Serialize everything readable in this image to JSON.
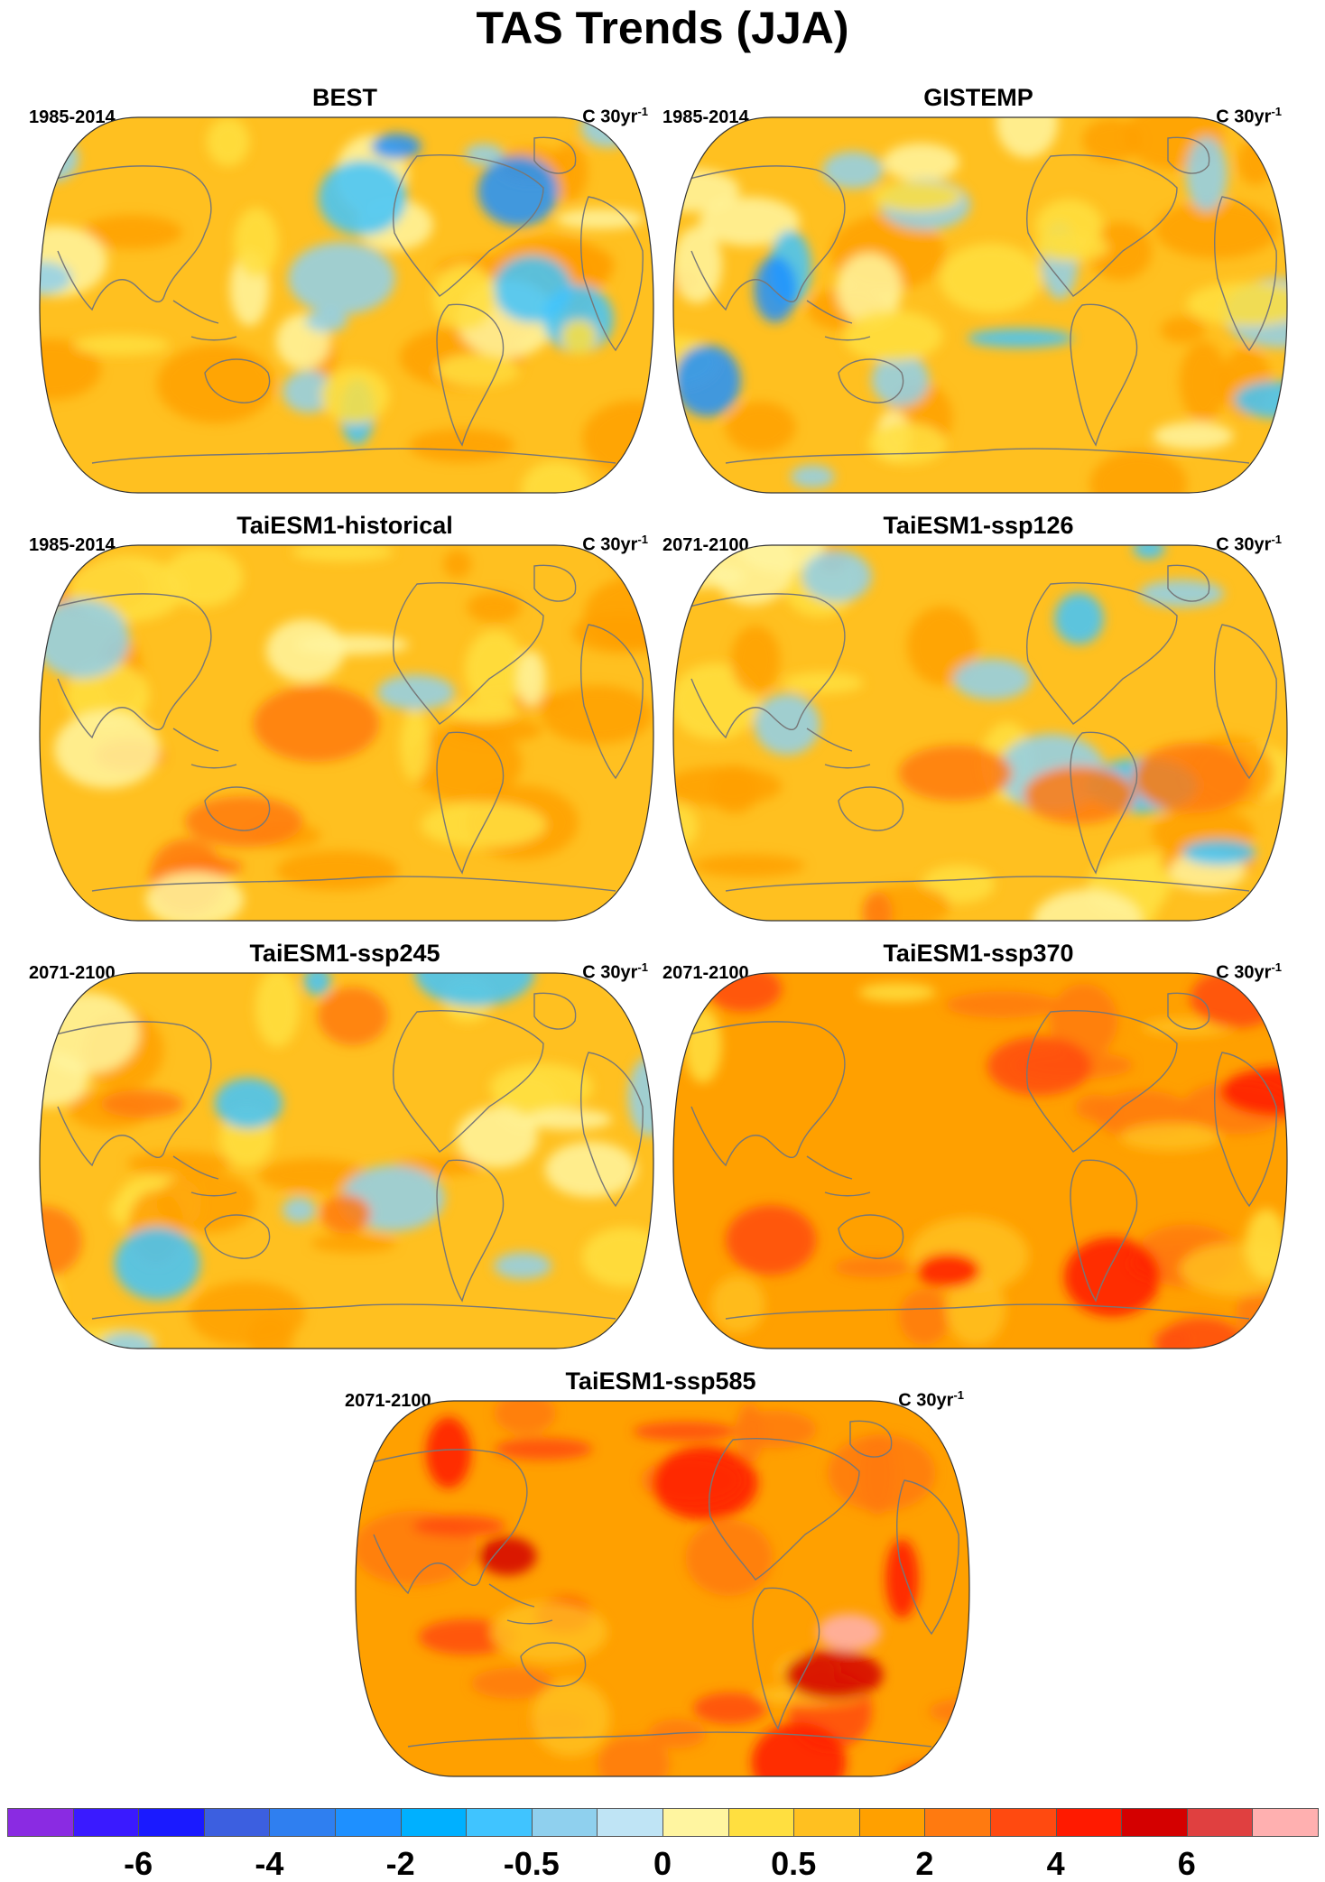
{
  "title": "TAS Trends (JJA)",
  "units": "C 30yr",
  "units_exponent": "-1",
  "panels": [
    {
      "title": "BEST",
      "period": "1985-2014",
      "style": "obs"
    },
    {
      "title": "GISTEMP",
      "period": "1985-2014",
      "style": "obs"
    },
    {
      "title": "TaiESM1-historical",
      "period": "1985-2014",
      "style": "hist"
    },
    {
      "title": "TaiESM1-ssp126",
      "period": "2071-2100",
      "style": "ssp126"
    },
    {
      "title": "TaiESM1-ssp245",
      "period": "2071-2100",
      "style": "ssp245"
    },
    {
      "title": "TaiESM1-ssp370",
      "period": "2071-2100",
      "style": "ssp370"
    },
    {
      "title": "TaiESM1-ssp585",
      "period": "2071-2100",
      "style": "ssp585"
    }
  ],
  "colorbar": {
    "colors": [
      "#8a2be2",
      "#3a1aff",
      "#1a1aff",
      "#3c5fe0",
      "#2f7ff0",
      "#1e90ff",
      "#00b0ff",
      "#40c4ff",
      "#8fd0ee",
      "#bfe4f5",
      "#fff5a0",
      "#ffdf40",
      "#ffc020",
      "#ffa000",
      "#ff7a10",
      "#ff4a10",
      "#ff1a00",
      "#d40000",
      "#e04040",
      "#ffb0b0"
    ],
    "labels": [
      "-6",
      "-4",
      "-2",
      "-0.5",
      "0",
      "0.5",
      "2",
      "4",
      "6"
    ],
    "label_boundaries": [
      1,
      3,
      5,
      7,
      9,
      11,
      13,
      15,
      17
    ]
  }
}
